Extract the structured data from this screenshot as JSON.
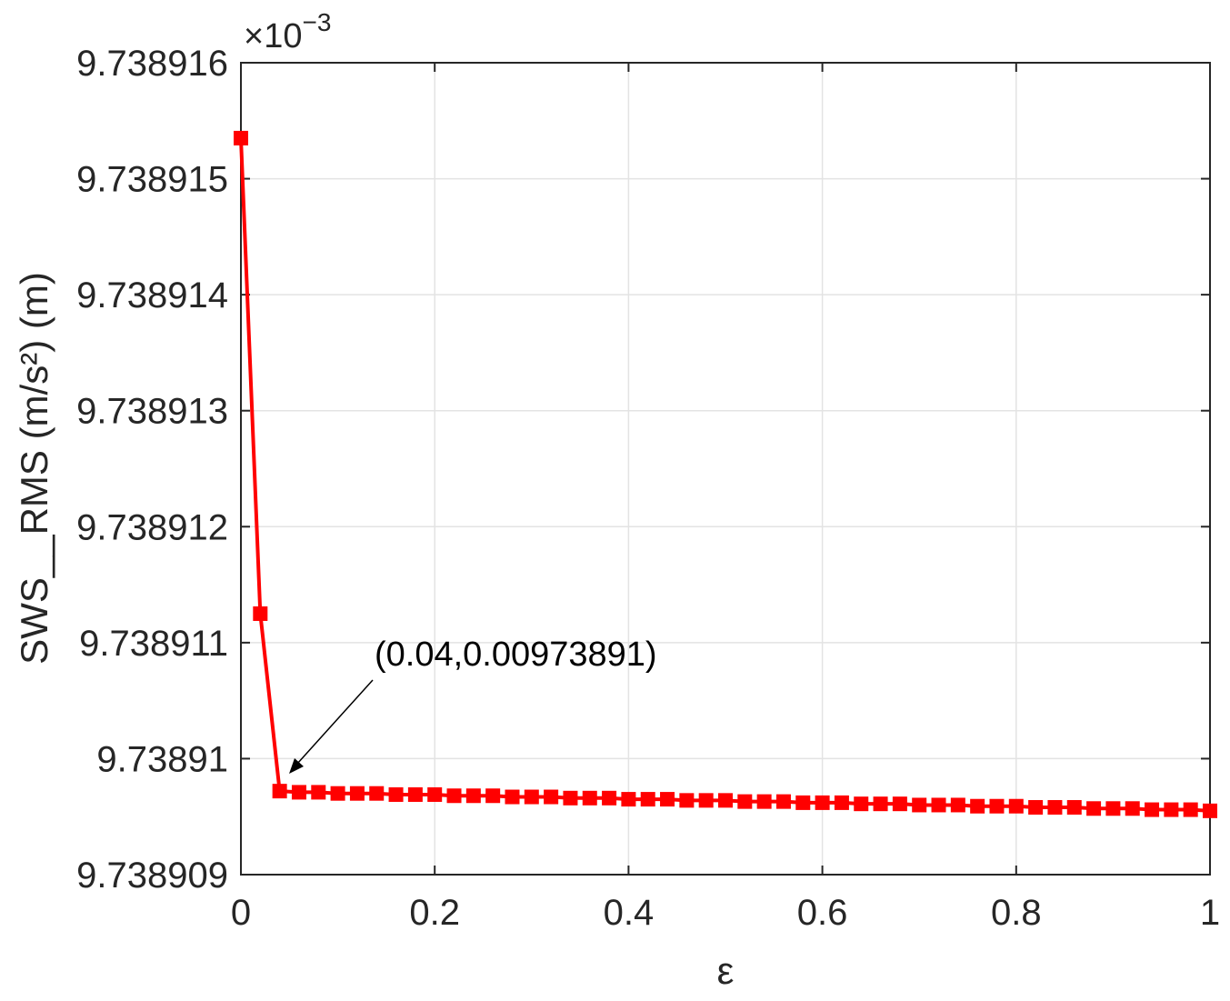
{
  "chart_data": {
    "type": "line",
    "xlabel": "ε",
    "ylabel": "SWS__RMS (m/s²) (m)",
    "xlim": [
      0,
      1
    ],
    "ylim": [
      9.738909,
      9.738916
    ],
    "y_scale_factor": "×10",
    "y_scale_exponent": "−3",
    "grid": true,
    "xticks": [
      0,
      0.2,
      0.4,
      0.6,
      0.8,
      1
    ],
    "xtick_labels": [
      "0",
      "0.2",
      "0.4",
      "0.6",
      "0.8",
      "1"
    ],
    "yticks": [
      9.738909,
      9.73891,
      9.738911,
      9.738912,
      9.738913,
      9.738914,
      9.738915,
      9.738916
    ],
    "ytick_labels": [
      "9.738909",
      "9.73891",
      "9.738911",
      "9.738912",
      "9.738913",
      "9.738914",
      "9.738915",
      "9.738916"
    ],
    "series": [
      {
        "color": "#ff0000",
        "marker": "square",
        "x": [
          0,
          0.02,
          0.04,
          0.06,
          0.08,
          0.1,
          0.12,
          0.14,
          0.16,
          0.18,
          0.2,
          0.22,
          0.24,
          0.26,
          0.28,
          0.3,
          0.32,
          0.34,
          0.36,
          0.38,
          0.4,
          0.42,
          0.44,
          0.46,
          0.48,
          0.5,
          0.52,
          0.54,
          0.56,
          0.58,
          0.6,
          0.62,
          0.64,
          0.66,
          0.68,
          0.7,
          0.72,
          0.74,
          0.76,
          0.78,
          0.8,
          0.82,
          0.84,
          0.86,
          0.88,
          0.9,
          0.92,
          0.94,
          0.96,
          0.98,
          1
        ],
        "y": [
          9.73891535,
          9.73891125,
          9.73890972,
          9.73890971,
          9.73890971,
          9.7389097,
          9.7389097,
          9.7389097,
          9.73890969,
          9.73890969,
          9.73890969,
          9.73890968,
          9.73890968,
          9.73890968,
          9.73890967,
          9.73890967,
          9.73890967,
          9.73890966,
          9.73890966,
          9.73890966,
          9.73890965,
          9.73890965,
          9.73890965,
          9.73890964,
          9.73890964,
          9.73890964,
          9.73890963,
          9.73890963,
          9.73890963,
          9.73890962,
          9.73890962,
          9.73890962,
          9.73890961,
          9.73890961,
          9.73890961,
          9.7389096,
          9.7389096,
          9.7389096,
          9.73890959,
          9.73890959,
          9.73890959,
          9.73890958,
          9.73890958,
          9.73890958,
          9.73890957,
          9.73890957,
          9.73890957,
          9.73890956,
          9.73890956,
          9.73890956,
          9.73890955
        ]
      }
    ],
    "annotation": {
      "text": "(0.04,0.00973891)",
      "x": 0.04,
      "y": 9.73890972
    }
  }
}
